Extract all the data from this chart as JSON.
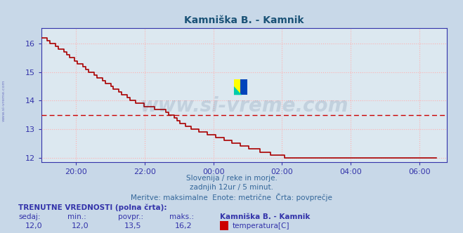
{
  "title": "Kamniška B. - Kamnik",
  "title_color": "#1a5276",
  "bg_color": "#c8d8e8",
  "plot_bg_color": "#dce8f0",
  "grid_color": "#ffb0b0",
  "axis_color": "#3333aa",
  "line_color": "#aa0000",
  "avg_line_color": "#cc0000",
  "avg_value": 13.5,
  "ylim": [
    11.85,
    16.55
  ],
  "yticks": [
    12,
    13,
    14,
    15,
    16
  ],
  "text_color": "#336699",
  "subtitle1": "Slovenija / reke in morje.",
  "subtitle2": "zadnjih 12ur / 5 minut.",
  "subtitle3": "Meritve: maksimalne  Enote: metrične  Črta: povprečje",
  "footer_title": "TRENUTNE VREDNOSTI (polna črta):",
  "footer_cols": [
    "sedaj:",
    "min.:",
    "povpr.:",
    "maks.:"
  ],
  "footer_vals": [
    "12,0",
    "12,0",
    "13,5",
    "16,2"
  ],
  "footer_station": "Kamniška B. - Kamnik",
  "footer_series": "temperatura[C]",
  "footer_series_color": "#cc0000",
  "watermark": "www.si-vreme.com",
  "watermark_color": "#1a3a6a",
  "watermark_alpha": 0.13,
  "side_text": "www.si-vreme.com",
  "xtick_positions": [
    1,
    3,
    5,
    7,
    9,
    11
  ],
  "xtick_labels": [
    "20:00",
    "22:00",
    "00:00",
    "02:00",
    "04:00",
    "06:00"
  ],
  "xlim": [
    0,
    11.8
  ],
  "temp_data": [
    16.2,
    16.2,
    16.1,
    16.0,
    16.0,
    15.9,
    15.8,
    15.8,
    15.7,
    15.6,
    15.5,
    15.5,
    15.4,
    15.3,
    15.3,
    15.2,
    15.1,
    15.0,
    15.0,
    14.9,
    14.8,
    14.8,
    14.7,
    14.6,
    14.6,
    14.5,
    14.4,
    14.4,
    14.3,
    14.2,
    14.2,
    14.1,
    14.0,
    14.0,
    13.9,
    13.9,
    13.9,
    13.8,
    13.8,
    13.8,
    13.8,
    13.7,
    13.7,
    13.7,
    13.7,
    13.6,
    13.5,
    13.5,
    13.4,
    13.3,
    13.2,
    13.2,
    13.1,
    13.1,
    13.0,
    13.0,
    13.0,
    12.9,
    12.9,
    12.9,
    12.8,
    12.8,
    12.8,
    12.7,
    12.7,
    12.7,
    12.6,
    12.6,
    12.6,
    12.5,
    12.5,
    12.5,
    12.4,
    12.4,
    12.4,
    12.3,
    12.3,
    12.3,
    12.3,
    12.2,
    12.2,
    12.2,
    12.2,
    12.1,
    12.1,
    12.1,
    12.1,
    12.1,
    12.0,
    12.0,
    12.0,
    12.0,
    12.0,
    12.0,
    12.0,
    12.0,
    12.0,
    12.0,
    12.0,
    12.0,
    12.0,
    12.0,
    12.0,
    12.0,
    12.0,
    12.0,
    12.0,
    12.0,
    12.0,
    12.0,
    12.0,
    12.0,
    12.0,
    12.0,
    12.0,
    12.0,
    12.0,
    12.0,
    12.0,
    12.0,
    12.0,
    12.0,
    12.0,
    12.0,
    12.0,
    12.0,
    12.0,
    12.0,
    12.0,
    12.0,
    12.0,
    12.0,
    12.0,
    12.0,
    12.0,
    12.0,
    12.0,
    12.0,
    12.0,
    12.0,
    12.0,
    12.0,
    12.0,
    12.0
  ]
}
